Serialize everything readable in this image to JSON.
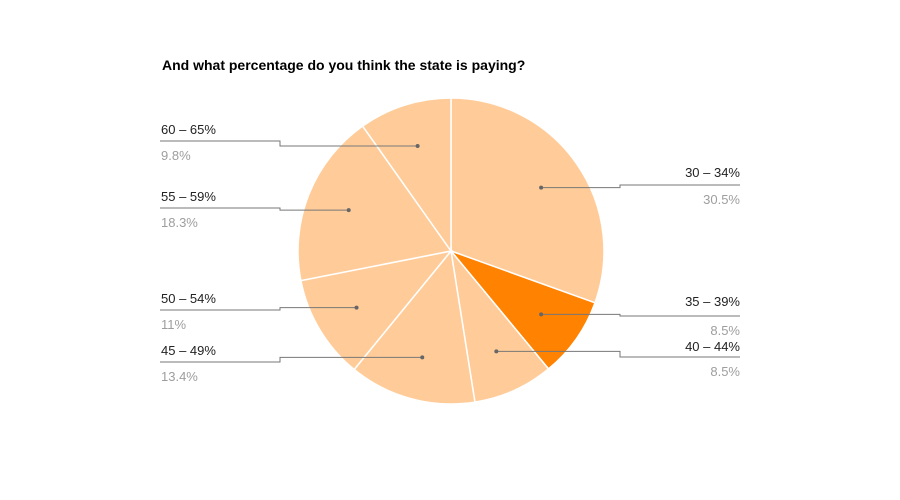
{
  "chart_data": {
    "type": "pie",
    "title": "And what percentage do you think the state is paying?",
    "slices": [
      {
        "label": "30 – 34%",
        "value_label": "30.5%",
        "value": 30.5,
        "highlight": false
      },
      {
        "label": "35 – 39%",
        "value_label": "8.5%",
        "value": 8.5,
        "highlight": true
      },
      {
        "label": "40 – 44%",
        "value_label": "8.5%",
        "value": 8.5,
        "highlight": false
      },
      {
        "label": "45 – 49%",
        "value_label": "13.4%",
        "value": 13.4,
        "highlight": false
      },
      {
        "label": "50 – 54%",
        "value_label": "11%",
        "value": 11.0,
        "highlight": false
      },
      {
        "label": "55 – 59%",
        "value_label": "18.3%",
        "value": 18.3,
        "highlight": false
      },
      {
        "label": "60 – 65%",
        "value_label": "9.8%",
        "value": 9.8,
        "highlight": false
      }
    ],
    "legend": "none"
  },
  "colors": {
    "slice": "#ffcc99",
    "highlight": "#ff8200",
    "slice_border": "#ffffff",
    "leader": "#777777"
  }
}
